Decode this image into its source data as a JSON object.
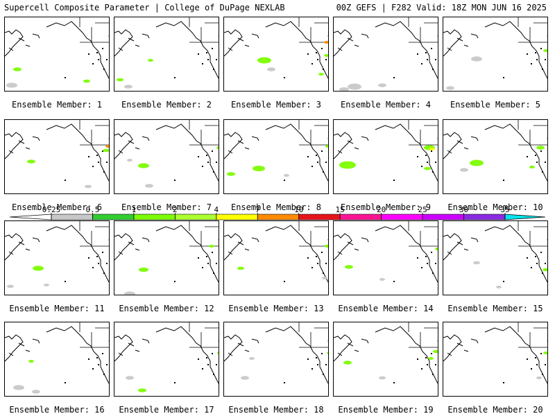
{
  "header": {
    "left": "Supercell Composite Parameter | College of DuPage NEXLAB",
    "right": "00Z GEFS | F282 Valid: 18Z MON JUN 16 2025"
  },
  "panel_label_prefix": "Ensemble Member: ",
  "members": [
    {
      "label": "Ensemble Member: 1",
      "blobs": [
        [
          "green",
          18,
          75,
          6
        ],
        [
          "gray",
          10,
          98,
          8
        ],
        [
          "green",
          118,
          92,
          5
        ]
      ]
    },
    {
      "label": "Ensemble Member: 2",
      "blobs": [
        [
          "green",
          8,
          90,
          5
        ],
        [
          "green",
          52,
          62,
          4
        ],
        [
          "gray",
          20,
          100,
          6
        ]
      ]
    },
    {
      "label": "Ensemble Member: 3",
      "blobs": [
        [
          "green",
          58,
          62,
          10
        ],
        [
          "gray",
          68,
          75,
          6
        ],
        [
          "orange",
          148,
          36,
          4
        ],
        [
          "green",
          148,
          55,
          4
        ],
        [
          "green",
          140,
          82,
          4
        ]
      ]
    },
    {
      "label": "Ensemble Member: 4",
      "blobs": [
        [
          "gray",
          30,
          100,
          10
        ],
        [
          "gray",
          15,
          104,
          7
        ],
        [
          "gray",
          70,
          98,
          6
        ]
      ]
    },
    {
      "label": "Ensemble Member: 5",
      "blobs": [
        [
          "gray",
          48,
          60,
          8
        ],
        [
          "gray",
          10,
          102,
          6
        ],
        [
          "green",
          148,
          48,
          4
        ]
      ]
    },
    {
      "label": "Ensemble Member: 6",
      "blobs": [
        [
          "green",
          38,
          60,
          6
        ],
        [
          "orange",
          150,
          38,
          5
        ],
        [
          "green",
          146,
          44,
          5
        ],
        [
          "gray",
          120,
          96,
          5
        ]
      ]
    },
    {
      "label": "Ensemble Member: 7",
      "blobs": [
        [
          "green",
          42,
          66,
          8
        ],
        [
          "green",
          152,
          40,
          5
        ],
        [
          "gray",
          50,
          95,
          6
        ],
        [
          "gray",
          22,
          58,
          4
        ]
      ]
    },
    {
      "label": "Ensemble Member: 8",
      "blobs": [
        [
          "green",
          10,
          78,
          6
        ],
        [
          "green",
          50,
          70,
          9
        ],
        [
          "green",
          150,
          38,
          4
        ],
        [
          "gray",
          90,
          80,
          4
        ]
      ]
    },
    {
      "label": "Ensemble Member: 9",
      "blobs": [
        [
          "green",
          20,
          65,
          12
        ],
        [
          "green",
          138,
          40,
          8
        ],
        [
          "yellow",
          142,
          42,
          4
        ],
        [
          "green",
          135,
          70,
          5
        ]
      ]
    },
    {
      "label": "Ensemble Member: 10",
      "blobs": [
        [
          "green",
          48,
          62,
          10
        ],
        [
          "gray",
          30,
          72,
          6
        ],
        [
          "green",
          140,
          40,
          6
        ],
        [
          "green",
          128,
          68,
          4
        ]
      ]
    },
    {
      "label": "Ensemble Member: 11",
      "blobs": [
        [
          "green",
          48,
          68,
          8
        ],
        [
          "gray",
          60,
          92,
          4
        ],
        [
          "gray",
          8,
          94,
          5
        ]
      ]
    },
    {
      "label": "Ensemble Member: 12",
      "blobs": [
        [
          "green",
          42,
          70,
          7
        ],
        [
          "gray",
          22,
          105,
          8
        ],
        [
          "green",
          140,
          36,
          4
        ]
      ]
    },
    {
      "label": "Ensemble Member: 13",
      "blobs": [
        [
          "green",
          24,
          68,
          5
        ],
        [
          "green",
          150,
          36,
          5
        ],
        [
          "gray",
          145,
          82,
          4
        ]
      ]
    },
    {
      "label": "Ensemble Member: 14",
      "blobs": [
        [
          "green",
          22,
          66,
          6
        ],
        [
          "green",
          150,
          40,
          4
        ],
        [
          "gray",
          70,
          84,
          4
        ]
      ]
    },
    {
      "label": "Ensemble Member: 15",
      "blobs": [
        [
          "gray",
          48,
          60,
          5
        ],
        [
          "green",
          148,
          70,
          5
        ],
        [
          "gray",
          80,
          95,
          4
        ]
      ]
    },
    {
      "label": "Ensemble Member: 16",
      "blobs": [
        [
          "green",
          38,
          56,
          4
        ],
        [
          "gray",
          20,
          94,
          8
        ],
        [
          "gray",
          45,
          100,
          6
        ]
      ]
    },
    {
      "label": "Ensemble Member: 17",
      "blobs": [
        [
          "gray",
          22,
          80,
          6
        ],
        [
          "green",
          40,
          98,
          6
        ],
        [
          "green",
          152,
          44,
          4
        ]
      ]
    },
    {
      "label": "Ensemble Member: 18",
      "blobs": [
        [
          "gray",
          40,
          52,
          4
        ],
        [
          "gray",
          30,
          80,
          6
        ],
        [
          "green",
          152,
          44,
          4
        ]
      ]
    },
    {
      "label": "Ensemble Member: 19",
      "blobs": [
        [
          "green",
          20,
          58,
          6
        ],
        [
          "gray",
          70,
          80,
          5
        ],
        [
          "green",
          148,
          42,
          5
        ],
        [
          "green",
          140,
          52,
          4
        ]
      ]
    },
    {
      "label": "Ensemble Member: 20",
      "blobs": [
        [
          "green",
          148,
          44,
          4
        ],
        [
          "gray",
          138,
          80,
          4
        ]
      ]
    }
  ],
  "colorbar": {
    "ticks": [
      "0.25",
      "0.5",
      "1",
      "2",
      "4",
      "7",
      "10",
      "15",
      "20",
      "25",
      "30",
      "35"
    ],
    "colors": [
      "#c8c8c8",
      "#32cd32",
      "#7cfc00",
      "#adff2f",
      "#ffff00",
      "#ff8c00",
      "#e8141c",
      "#ff1493",
      "#ff00ff",
      "#cc00ff",
      "#8a2be2",
      "#b05fe0",
      "#00e5ee"
    ]
  },
  "colors": {
    "gray": "#c8c8c8",
    "green": "#7cfc00",
    "yellow": "#ffff00",
    "orange": "#ff8c00",
    "red": "#ff0000"
  }
}
